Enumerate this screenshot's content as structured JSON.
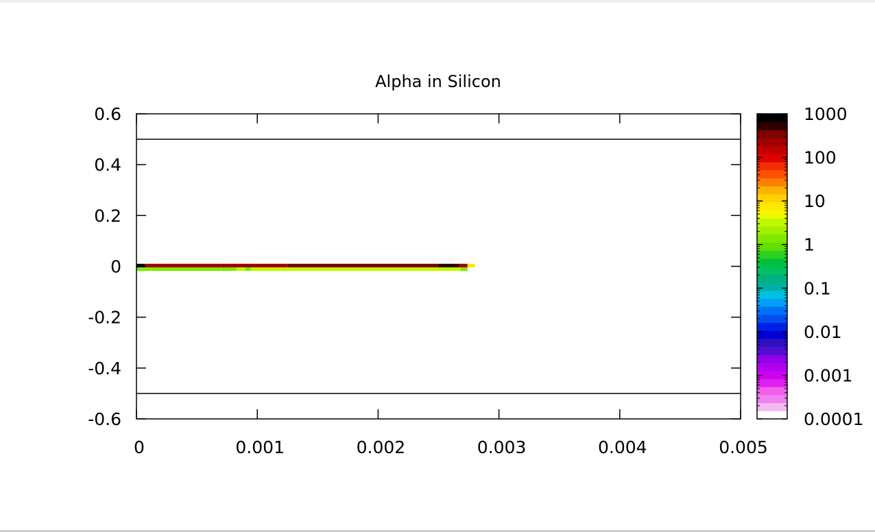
{
  "chart_data": {
    "type": "heatmap",
    "title": "Alpha in Silicon",
    "xlabel": "",
    "ylabel": "",
    "xlim": [
      0,
      0.005
    ],
    "ylim": [
      -0.6,
      0.6
    ],
    "x_ticks": [
      "0",
      "0.001",
      "0.002",
      "0.003",
      "0.004",
      "0.005"
    ],
    "y_ticks": [
      "0.6",
      "0.4",
      "0.2",
      "0",
      "-0.2",
      "-0.4",
      "-0.6"
    ],
    "boundary_lines_y": [
      0.5,
      -0.5
    ],
    "colorbar": {
      "scale": "log",
      "range": [
        0.0001,
        1000
      ],
      "tick_labels": [
        "1000",
        "100",
        "10",
        "1",
        "0.1",
        "0.01",
        "0.001",
        "0.0001"
      ],
      "colors": [
        "#ffffff",
        "#f2b8f2",
        "#f080f0",
        "#f060e8",
        "#e020f0",
        "#d000f0",
        "#b000f0",
        "#9000e8",
        "#5010d0",
        "#3010c0",
        "#0000d8",
        "#0020e8",
        "#0050f0",
        "#0070f8",
        "#00a0f8",
        "#00c0e0",
        "#00b0a0",
        "#00b080",
        "#00c060",
        "#00c040",
        "#30d020",
        "#60e000",
        "#80e800",
        "#a0f000",
        "#c0f800",
        "#f0f800",
        "#ffe800",
        "#ffd000",
        "#ffb000",
        "#ff8000",
        "#ff5000",
        "#f03000",
        "#e00000",
        "#c00000",
        "#a00000",
        "#800000",
        "#300000",
        "#000000"
      ]
    },
    "cells": [
      {
        "x0": 0.0,
        "x1": 7e-05,
        "y0": -0.004,
        "y1": 0.01,
        "value": 1000
      },
      {
        "x0": 7e-05,
        "x1": 0.0007,
        "y0": -0.004,
        "y1": 0.01,
        "value": 200
      },
      {
        "x0": 0.0007,
        "x1": 0.00125,
        "y0": -0.004,
        "y1": 0.01,
        "value": 250
      },
      {
        "x0": 0.00125,
        "x1": 0.0025,
        "y0": -0.004,
        "y1": 0.01,
        "value": 400
      },
      {
        "x0": 0.0025,
        "x1": 0.00267,
        "y0": -0.004,
        "y1": 0.01,
        "value": 500
      },
      {
        "x0": 0.00267,
        "x1": 0.00274,
        "y0": -0.004,
        "y1": 0.01,
        "value": 200
      },
      {
        "x0": 0.00274,
        "x1": 0.0028,
        "y0": -0.004,
        "y1": 0.01,
        "value": 8
      },
      {
        "x0": 0.0,
        "x1": 0.00083,
        "y0": -0.018,
        "y1": -0.004,
        "value": 1.5
      },
      {
        "x0": 0.00083,
        "x1": 0.0009,
        "y0": -0.018,
        "y1": -0.004,
        "value": 4
      },
      {
        "x0": 0.0009,
        "x1": 0.00095,
        "y0": -0.018,
        "y1": -0.004,
        "value": 1.5
      },
      {
        "x0": 0.00095,
        "x1": 0.00268,
        "y0": -0.018,
        "y1": -0.004,
        "value": 3
      },
      {
        "x0": 0.00268,
        "x1": 0.00274,
        "y0": -0.018,
        "y1": -0.004,
        "value": 1.5
      }
    ]
  }
}
